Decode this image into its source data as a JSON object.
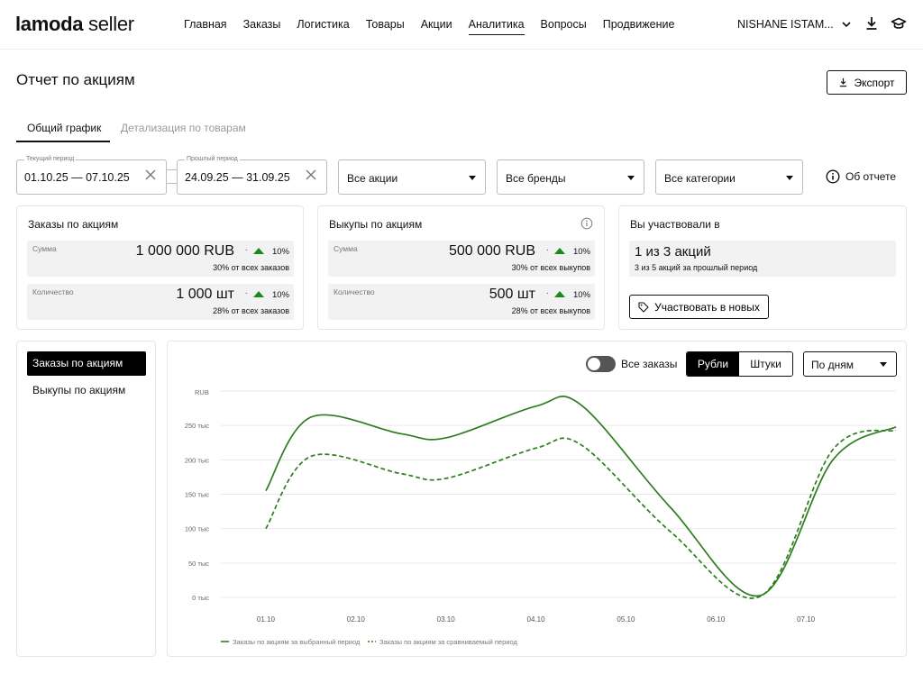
{
  "header": {
    "logo_bold": "lamoda",
    "logo_rest": " seller",
    "nav": [
      "Главная",
      "Заказы",
      "Логистика",
      "Товары",
      "Акции",
      "Аналитика",
      "Вопросы",
      "Продвижение"
    ],
    "active_nav": "Аналитика",
    "user_name": "NISHANE ISTAM...",
    "icons": [
      "chevron-down-icon",
      "download-icon",
      "graduation-cap-icon"
    ]
  },
  "page": {
    "title": "Отчет по акциям",
    "export_label": "Экспорт"
  },
  "tabs": {
    "general": "Общий график",
    "detail": "Детализация по товарам"
  },
  "filters": {
    "current_period_label": "Текущий период",
    "current_period_value": "01.10.25 — 07.10.25",
    "prev_period_label": "Прошлый период",
    "prev_period_value": "24.09.25 — 31.09.25",
    "promo_select": "Все акции",
    "brand_select": "Все бренды",
    "category_select": "Все категории",
    "about_label": "Об отчете"
  },
  "cards": {
    "orders": {
      "title": "Заказы по акциям",
      "sum_label": "Сумма",
      "sum_value": "1 000 000 RUB",
      "sum_sep": "·",
      "sum_change": "10%",
      "sum_sub": "30% от всех заказов",
      "qty_label": "Количество",
      "qty_value": "1 000 шт",
      "qty_sep": "·",
      "qty_change": "10%",
      "qty_sub": "28% от всех заказов"
    },
    "buyouts": {
      "title": "Выкупы по акциям",
      "sum_label": "Сумма",
      "sum_value": "500 000 RUB",
      "sum_sep": "·",
      "sum_change": "10%",
      "sum_sub": "30% от всех выкупов",
      "qty_label": "Количество",
      "qty_value": "500 шт",
      "qty_sep": "·",
      "qty_change": "10%",
      "qty_sub": "28% от всех выкупов"
    },
    "participation": {
      "title": "Вы участвовали в",
      "value": "1 из 3 акций",
      "sub": "3 из 5 акций за прошлый период",
      "button": "Участвовать в новых"
    }
  },
  "left_menu": {
    "items": [
      "Заказы по акциям",
      "Выкупы по акциям"
    ],
    "active_index": 0
  },
  "chart_controls": {
    "toggle_label": "Все заказы",
    "toggle_on": false,
    "unit_rub": "Рубли",
    "unit_pcs": "Штуки",
    "active_unit": "Рубли",
    "period_select": "По дням"
  },
  "colors": {
    "series": "#2e7d1f",
    "accent_up": "#1a8a1a"
  },
  "chart_data": {
    "type": "line",
    "y_unit": "RUB",
    "y_ticks": [
      "0 тыс",
      "50 тыс",
      "100 тыс",
      "150 тыс",
      "200 тыс",
      "250 тыс"
    ],
    "ylim": [
      0,
      300
    ],
    "x_ticks": [
      "01.10",
      "02.10",
      "03.10",
      "04.10",
      "05.10",
      "06.10",
      "07.10"
    ],
    "grid": true,
    "legend_position": "bottom-left",
    "series": [
      {
        "name": "Заказы по акциям за выбранный период",
        "style": "solid",
        "x": [
          0.5,
          1.0,
          2.0,
          2.5,
          3.5,
          4.0,
          5.0,
          6.0,
          6.8,
          7.5
        ],
        "values": [
          155,
          262,
          238,
          232,
          278,
          280,
          130,
          3,
          200,
          248
        ]
      },
      {
        "name": "Заказы по акциям за сравниваемый период",
        "style": "dashed",
        "x": [
          0.5,
          1.0,
          2.0,
          2.5,
          3.5,
          4.0,
          5.0,
          6.0,
          6.8,
          7.5
        ],
        "values": [
          100,
          205,
          180,
          173,
          217,
          222,
          95,
          2,
          215,
          243
        ]
      }
    ]
  }
}
